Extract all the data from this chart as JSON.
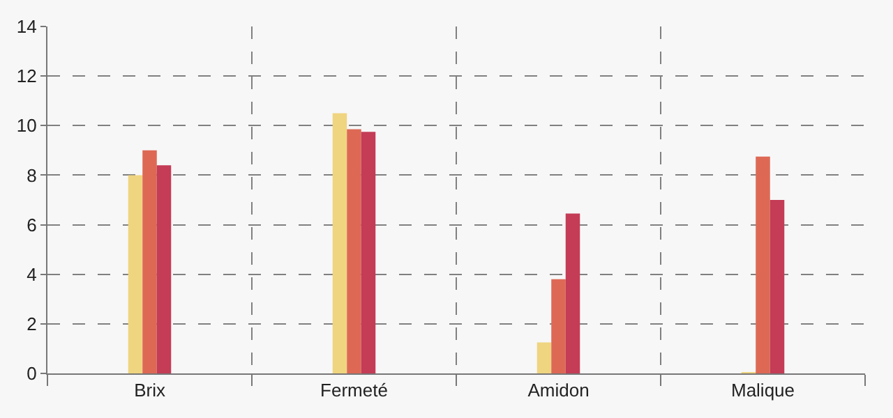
{
  "chart_data": {
    "type": "bar",
    "categories": [
      "Brix",
      "Fermeté",
      "Amidon",
      "Malique"
    ],
    "series": [
      {
        "color": "#efd580",
        "values": [
          8.0,
          10.5,
          1.25,
          0.05
        ]
      },
      {
        "color": "#dd6955",
        "values": [
          9.0,
          9.85,
          3.8,
          8.75
        ]
      },
      {
        "color": "#c43c56",
        "values": [
          8.4,
          9.75,
          6.45,
          7.0
        ]
      }
    ],
    "ylim": [
      0,
      14
    ],
    "yticks": [
      0,
      2,
      4,
      6,
      8,
      10,
      12,
      14
    ],
    "grid": true
  }
}
